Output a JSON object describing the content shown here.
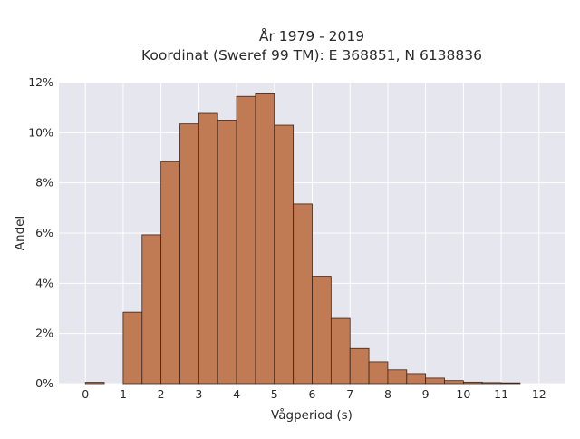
{
  "chart_data": {
    "type": "bar",
    "title": [
      "År 1979 - 2019",
      "Koordinat (Sweref 99 TM): E 368851, N 6138836"
    ],
    "xlabel": "Vågperiod (s)",
    "ylabel": "Andel",
    "xlim": [
      -0.7,
      12.7
    ],
    "ylim": [
      0,
      12
    ],
    "x_ticks": [
      0,
      1,
      2,
      3,
      4,
      5,
      6,
      7,
      8,
      9,
      10,
      11,
      12
    ],
    "y_ticks": [
      0,
      2,
      4,
      6,
      8,
      10,
      12
    ],
    "y_tick_labels": [
      "0%",
      "2%",
      "4%",
      "6%",
      "8%",
      "10%",
      "12%"
    ],
    "bin_width": 0.5,
    "bins": [
      {
        "start": 0.0,
        "value": 0.05
      },
      {
        "start": 1.0,
        "value": 2.85
      },
      {
        "start": 1.5,
        "value": 5.93
      },
      {
        "start": 2.0,
        "value": 8.85
      },
      {
        "start": 2.5,
        "value": 10.35
      },
      {
        "start": 3.0,
        "value": 10.77
      },
      {
        "start": 3.5,
        "value": 10.5
      },
      {
        "start": 4.0,
        "value": 11.45
      },
      {
        "start": 4.5,
        "value": 11.55
      },
      {
        "start": 5.0,
        "value": 10.3
      },
      {
        "start": 5.5,
        "value": 7.16
      },
      {
        "start": 6.0,
        "value": 4.28
      },
      {
        "start": 6.5,
        "value": 2.6
      },
      {
        "start": 7.0,
        "value": 1.4
      },
      {
        "start": 7.5,
        "value": 0.87
      },
      {
        "start": 8.0,
        "value": 0.55
      },
      {
        "start": 8.5,
        "value": 0.4
      },
      {
        "start": 9.0,
        "value": 0.22
      },
      {
        "start": 9.5,
        "value": 0.12
      },
      {
        "start": 10.0,
        "value": 0.06
      },
      {
        "start": 10.5,
        "value": 0.04
      },
      {
        "start": 11.0,
        "value": 0.03
      }
    ],
    "grid": true,
    "bar_color": "#c07b54",
    "bar_edge_color": "#3b2418",
    "plot_background": "#e5e6ee",
    "grid_color": "#ffffff"
  }
}
